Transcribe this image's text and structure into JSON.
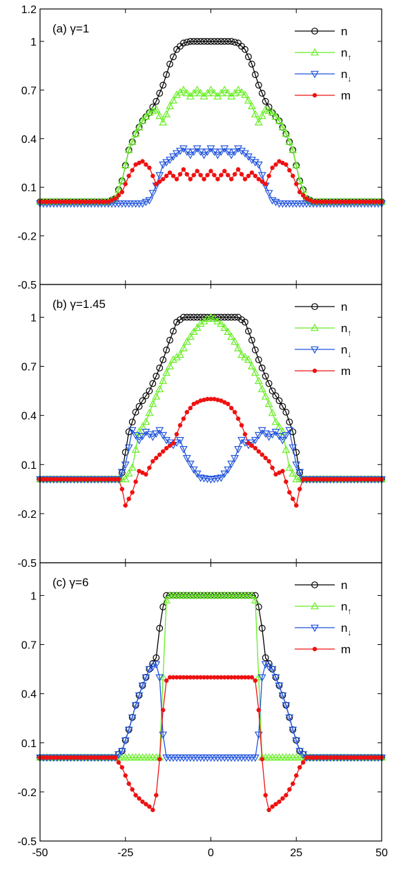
{
  "colors": {
    "n": "#000000",
    "n_up": "#66ee22",
    "n_down": "#2255dd",
    "m": "#ee1111",
    "axes": "#000000"
  },
  "chart_data": [
    {
      "type": "line",
      "label": "(a) γ=1",
      "xlim": [
        -50,
        50
      ],
      "ylim": [
        -0.5,
        1.2
      ],
      "yticks": [
        "-0.5",
        "-0.2",
        "0.1",
        "0.4",
        "0.7",
        "1",
        "1.2"
      ],
      "xticks": [],
      "grid": false,
      "legend": "top-right",
      "series": [
        {
          "name": "n",
          "key": "n",
          "marker": "circle",
          "x": [
            -50,
            -30,
            -28,
            -26,
            -24,
            -22,
            -20,
            -18,
            -16,
            -14,
            -12,
            -10,
            -8,
            -6,
            0,
            6,
            8,
            10,
            12,
            14,
            16,
            18,
            20,
            22,
            24,
            26,
            28,
            30,
            50
          ],
          "y": [
            0.01,
            0.01,
            0.03,
            0.14,
            0.33,
            0.43,
            0.51,
            0.56,
            0.63,
            0.73,
            0.86,
            0.95,
            0.99,
            1.0,
            1.0,
            1.0,
            0.99,
            0.95,
            0.86,
            0.73,
            0.63,
            0.56,
            0.51,
            0.43,
            0.33,
            0.14,
            0.03,
            0.01,
            0.01
          ]
        },
        {
          "name": "n↑",
          "key": "n_up",
          "marker": "triangle-up",
          "x": [
            -50,
            -30,
            -28,
            -26,
            -24,
            -22,
            -20,
            -18,
            -16,
            -14,
            -12,
            -10,
            -8,
            -6,
            -4,
            -2,
            0,
            2,
            4,
            6,
            8,
            10,
            12,
            14,
            16,
            18,
            20,
            22,
            24,
            26,
            28,
            30,
            50
          ],
          "y": [
            0.01,
            0.01,
            0.03,
            0.14,
            0.33,
            0.43,
            0.51,
            0.56,
            0.58,
            0.5,
            0.6,
            0.67,
            0.7,
            0.66,
            0.7,
            0.66,
            0.7,
            0.66,
            0.7,
            0.66,
            0.7,
            0.67,
            0.6,
            0.5,
            0.58,
            0.56,
            0.51,
            0.43,
            0.33,
            0.14,
            0.03,
            0.01,
            0.01
          ]
        },
        {
          "name": "n↓",
          "key": "n_down",
          "marker": "triangle-down",
          "x": [
            -50,
            -20,
            -18,
            -16,
            -14,
            -12,
            -10,
            -8,
            -6,
            -4,
            -2,
            0,
            2,
            4,
            6,
            8,
            10,
            12,
            14,
            16,
            18,
            20,
            50
          ],
          "y": [
            0.0,
            0.0,
            0.02,
            0.11,
            0.24,
            0.27,
            0.31,
            0.34,
            0.3,
            0.34,
            0.3,
            0.34,
            0.3,
            0.34,
            0.3,
            0.34,
            0.31,
            0.27,
            0.24,
            0.11,
            0.02,
            0.0,
            0.0
          ]
        },
        {
          "name": "m",
          "key": "m",
          "marker": "dot",
          "x": [
            -50,
            -30,
            -28,
            -26,
            -24,
            -22,
            -20,
            -18,
            -16,
            -14,
            -12,
            -10,
            -8,
            -6,
            -4,
            -2,
            0,
            2,
            4,
            6,
            8,
            10,
            12,
            14,
            16,
            18,
            20,
            22,
            24,
            26,
            28,
            30,
            50
          ],
          "y": [
            0.01,
            0.01,
            0.03,
            0.07,
            0.17,
            0.24,
            0.26,
            0.22,
            0.12,
            0.15,
            0.19,
            0.15,
            0.21,
            0.15,
            0.2,
            0.15,
            0.2,
            0.15,
            0.2,
            0.15,
            0.21,
            0.15,
            0.19,
            0.15,
            0.12,
            0.22,
            0.26,
            0.24,
            0.17,
            0.07,
            0.03,
            0.01,
            0.01
          ]
        }
      ]
    },
    {
      "type": "line",
      "label": "(b) γ=1.45",
      "xlim": [
        -50,
        50
      ],
      "ylim": [
        -0.5,
        1.2
      ],
      "yticks": [
        "-0.5",
        "-0.2",
        "0.1",
        "0.4",
        "0.7",
        "1"
      ],
      "xticks": [],
      "grid": false,
      "legend": "top-right",
      "series": [
        {
          "name": "n",
          "key": "n",
          "marker": "circle",
          "x": [
            -50,
            -27,
            -26,
            -24,
            -22,
            -20,
            -18,
            -16,
            -14,
            -12,
            -10,
            -8,
            -6,
            0,
            6,
            8,
            10,
            12,
            14,
            16,
            18,
            20,
            22,
            24,
            26,
            27,
            50
          ],
          "y": [
            0.01,
            0.01,
            0.05,
            0.3,
            0.42,
            0.49,
            0.55,
            0.64,
            0.74,
            0.86,
            0.97,
            1.0,
            1.0,
            1.0,
            1.0,
            1.0,
            0.97,
            0.86,
            0.74,
            0.64,
            0.55,
            0.49,
            0.42,
            0.3,
            0.05,
            0.01,
            0.01
          ]
        },
        {
          "name": "n↑",
          "key": "n_up",
          "marker": "triangle-up",
          "x": [
            -50,
            -25,
            -23,
            -21,
            -19,
            -17,
            -15,
            -13,
            -11,
            -9,
            -7,
            -5,
            -3,
            -1,
            0,
            1,
            3,
            5,
            7,
            9,
            11,
            13,
            15,
            17,
            19,
            21,
            23,
            25,
            50
          ],
          "y": [
            0.01,
            0.01,
            0.08,
            0.3,
            0.36,
            0.47,
            0.56,
            0.66,
            0.74,
            0.77,
            0.85,
            0.91,
            0.96,
            0.99,
            1.0,
            0.99,
            0.96,
            0.91,
            0.85,
            0.77,
            0.74,
            0.66,
            0.56,
            0.47,
            0.36,
            0.3,
            0.08,
            0.01,
            0.01
          ]
        },
        {
          "name": "n↓",
          "key": "n_down",
          "marker": "triangle-down",
          "x": [
            -50,
            -27,
            -25,
            -23,
            -21,
            -19,
            -17,
            -15,
            -13,
            -11,
            -9,
            -7,
            -5,
            -3,
            0,
            3,
            5,
            7,
            9,
            11,
            13,
            15,
            17,
            19,
            21,
            23,
            25,
            27,
            50
          ],
          "y": [
            0.01,
            0.01,
            0.1,
            0.31,
            0.25,
            0.3,
            0.27,
            0.31,
            0.25,
            0.22,
            0.25,
            0.14,
            0.07,
            0.02,
            0.01,
            0.02,
            0.07,
            0.14,
            0.25,
            0.22,
            0.25,
            0.31,
            0.27,
            0.3,
            0.25,
            0.31,
            0.1,
            0.01,
            0.01
          ]
        },
        {
          "name": "m",
          "key": "m",
          "marker": "dot",
          "x": [
            -50,
            -27,
            -26,
            -25,
            -23,
            -21,
            -19,
            -17,
            -15,
            -13,
            -11,
            -9,
            -7,
            -5,
            -3,
            -1,
            0,
            1,
            3,
            5,
            7,
            9,
            11,
            13,
            15,
            17,
            19,
            21,
            23,
            25,
            26,
            27,
            50
          ],
          "y": [
            0.01,
            0.01,
            -0.05,
            -0.15,
            -0.07,
            0.06,
            0.04,
            0.12,
            0.16,
            0.2,
            0.23,
            0.34,
            0.42,
            0.47,
            0.49,
            0.5,
            0.5,
            0.5,
            0.49,
            0.47,
            0.42,
            0.34,
            0.23,
            0.2,
            0.16,
            0.12,
            0.04,
            0.06,
            -0.07,
            -0.15,
            -0.05,
            0.01,
            0.01
          ]
        }
      ]
    },
    {
      "type": "line",
      "label": "(c) γ=6",
      "xlim": [
        -50,
        50
      ],
      "ylim": [
        -0.5,
        1.2
      ],
      "yticks": [
        "-0.5",
        "-0.2",
        "0.1",
        "0.4",
        "0.7",
        "1"
      ],
      "xticks": [
        "-50",
        "-25",
        "0",
        "25",
        "50"
      ],
      "grid": false,
      "legend": "top-right",
      "series": [
        {
          "name": "n",
          "key": "n",
          "marker": "circle",
          "x": [
            -50,
            -28,
            -26,
            -24,
            -22,
            -20,
            -18,
            -16,
            -15,
            -14,
            -13,
            -12,
            0,
            12,
            13,
            14,
            15,
            16,
            18,
            20,
            22,
            24,
            26,
            28,
            50
          ],
          "y": [
            0.01,
            0.01,
            0.05,
            0.18,
            0.33,
            0.45,
            0.55,
            0.62,
            0.8,
            0.93,
            1.0,
            1.0,
            1.0,
            1.0,
            1.0,
            0.93,
            0.8,
            0.62,
            0.55,
            0.45,
            0.33,
            0.18,
            0.05,
            0.01,
            0.01
          ]
        },
        {
          "name": "n↑",
          "key": "n_up",
          "marker": "triangle-up",
          "x": [
            -50,
            -15,
            -14,
            -13,
            -12,
            0,
            12,
            13,
            14,
            15,
            50
          ],
          "y": [
            0.01,
            0.01,
            0.5,
            0.97,
            1.0,
            1.0,
            1.0,
            0.97,
            0.5,
            0.01,
            0.01
          ]
        },
        {
          "name": "n↓",
          "key": "n_down",
          "marker": "triangle-down",
          "x": [
            -50,
            -28,
            -26,
            -24,
            -22,
            -20,
            -18,
            -16,
            -15,
            -14,
            -13,
            0,
            13,
            14,
            15,
            16,
            18,
            20,
            22,
            24,
            26,
            28,
            50
          ],
          "y": [
            0.01,
            0.01,
            0.05,
            0.18,
            0.33,
            0.45,
            0.55,
            0.58,
            0.5,
            0.15,
            0.01,
            0.01,
            0.01,
            0.15,
            0.5,
            0.58,
            0.55,
            0.45,
            0.33,
            0.18,
            0.05,
            0.01,
            0.01
          ]
        },
        {
          "name": "m",
          "key": "m",
          "marker": "dot",
          "x": [
            -50,
            -28,
            -26,
            -24,
            -22,
            -20,
            -18,
            -17,
            -16,
            -15,
            -14,
            -13,
            -12,
            0,
            12,
            13,
            14,
            15,
            16,
            17,
            18,
            20,
            22,
            24,
            26,
            28,
            50
          ],
          "y": [
            0.01,
            0.01,
            -0.05,
            -0.15,
            -0.22,
            -0.26,
            -0.29,
            -0.31,
            -0.22,
            0.0,
            0.3,
            0.48,
            0.5,
            0.5,
            0.5,
            0.48,
            0.3,
            0.0,
            -0.22,
            -0.31,
            -0.29,
            -0.26,
            -0.22,
            -0.15,
            -0.05,
            0.01,
            0.01
          ]
        }
      ]
    }
  ]
}
